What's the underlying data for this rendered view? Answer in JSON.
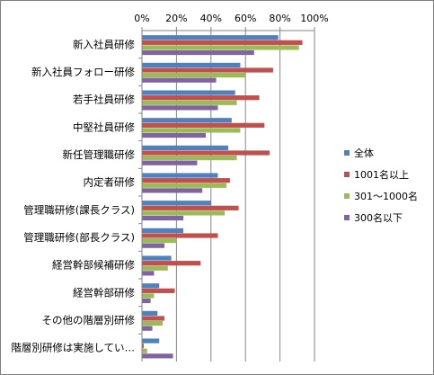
{
  "chart_data": {
    "type": "bar",
    "orientation": "horizontal",
    "x_axis_position": "top",
    "xlim": [
      0,
      100
    ],
    "x_ticks": [
      "0%",
      "20%",
      "40%",
      "60%",
      "80%",
      "100%"
    ],
    "gridlines": true,
    "legend_placement": "right",
    "categories": [
      "新入社員研修",
      "新入社員フォロー研修",
      "若手社員研修",
      "中堅社員研修",
      "新任管理職研修",
      "内定者研修",
      "管理職研修(課長クラス)",
      "管理職研修(部長クラス)",
      "経営幹部候補研修",
      "経営幹部研修",
      "その他の階層別研修",
      "階層別研修は実施してい…"
    ],
    "series": [
      {
        "name": "全体",
        "color": "#4f81bd",
        "values": [
          79,
          57,
          54,
          52,
          50,
          44,
          40,
          24,
          17,
          10,
          9,
          10
        ]
      },
      {
        "name": "1001名以上",
        "color": "#c0504d",
        "values": [
          93,
          76,
          68,
          71,
          74,
          51,
          56,
          44,
          34,
          19,
          13,
          1
        ]
      },
      {
        "name": "301～1000名",
        "color": "#9bbb59",
        "values": [
          91,
          60,
          55,
          57,
          55,
          49,
          48,
          20,
          15,
          7,
          12,
          3
        ]
      },
      {
        "name": "300名以下",
        "color": "#8064a2",
        "values": [
          65,
          43,
          44,
          37,
          32,
          35,
          24,
          13,
          7,
          5,
          6,
          18
        ]
      }
    ]
  }
}
